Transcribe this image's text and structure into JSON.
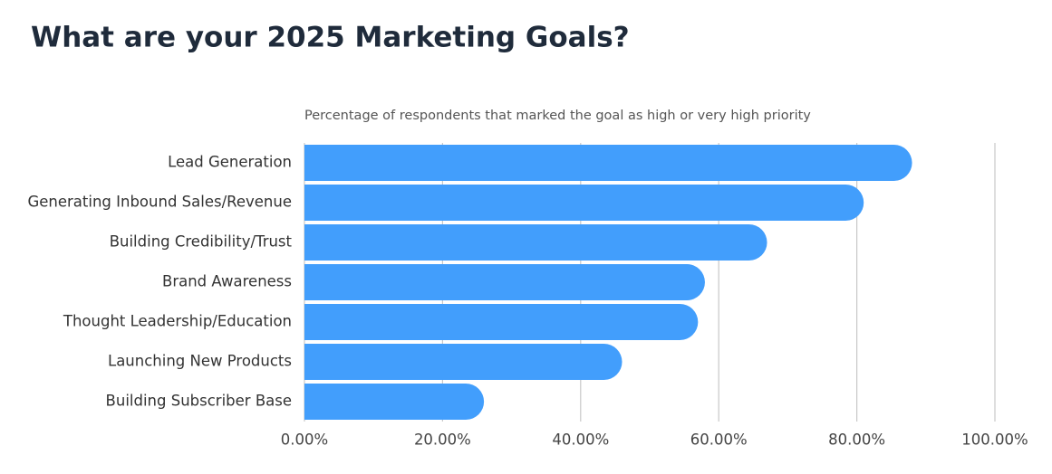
{
  "chart_data": {
    "type": "bar",
    "orientation": "horizontal",
    "title": "What are your 2025 Marketing Goals?",
    "subtitle": "Percentage of respondents that marked the goal as high or very high priority",
    "categories": [
      "Lead Generation",
      "Generating Inbound Sales/Revenue",
      "Building Credibility/Trust",
      "Brand Awareness",
      "Thought Leadership/Education",
      "Launching New Products",
      "Building Subscriber Base"
    ],
    "values": [
      88,
      81,
      67,
      58,
      57,
      46,
      26
    ],
    "color": "#429efc",
    "xlim": [
      0,
      100
    ],
    "xticks": [
      {
        "value": 0,
        "label": "0.00%"
      },
      {
        "value": 20,
        "label": "20.00%"
      },
      {
        "value": 40,
        "label": "40.00%"
      },
      {
        "value": 60,
        "label": "60.00%"
      },
      {
        "value": 80,
        "label": "80.00%"
      },
      {
        "value": 100,
        "label": "100.00%"
      }
    ],
    "grid": true
  }
}
